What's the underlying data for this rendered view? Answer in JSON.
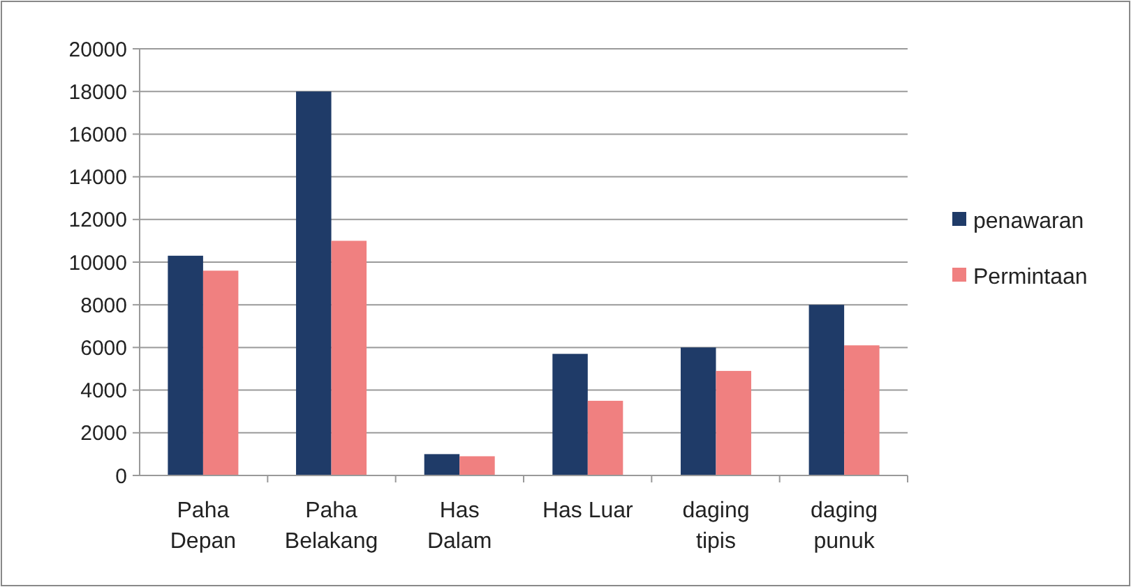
{
  "chart_data": {
    "type": "bar",
    "categories": [
      "Paha\nDepan",
      "Paha\nBelakang",
      "Has\nDalam",
      "Has Luar",
      "daging\ntipis",
      "daging\npunuk"
    ],
    "series": [
      {
        "name": "penawaran",
        "color": "#1f3b68",
        "values": [
          10300,
          18000,
          1000,
          5700,
          6000,
          8000
        ]
      },
      {
        "name": "Permintaan",
        "color": "#f08080",
        "values": [
          9600,
          11000,
          900,
          3500,
          4900,
          6100
        ]
      }
    ],
    "ylim": [
      0,
      20000
    ],
    "yticks": [
      0,
      2000,
      4000,
      6000,
      8000,
      10000,
      12000,
      14000,
      16000,
      18000,
      20000
    ],
    "grid": "y",
    "legend": "right"
  }
}
